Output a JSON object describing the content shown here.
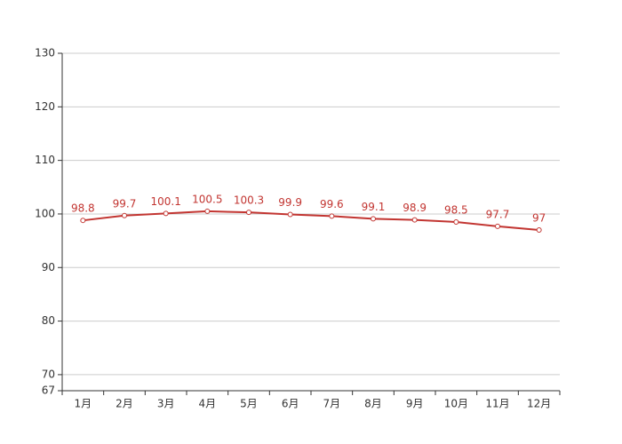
{
  "chart_data": {
    "type": "line",
    "categories": [
      "1月",
      "2月",
      "3月",
      "4月",
      "5月",
      "6月",
      "7月",
      "8月",
      "9月",
      "10月",
      "11月",
      "12月"
    ],
    "values": [
      98.8,
      99.7,
      100.1,
      100.5,
      100.3,
      99.9,
      99.6,
      99.1,
      98.9,
      98.5,
      97.7,
      97
    ],
    "color": "#c23531",
    "ylim": [
      67,
      130
    ],
    "yticks": [
      67,
      70,
      80,
      90,
      100,
      110,
      120,
      130
    ],
    "grid": true,
    "data_labels": true
  }
}
